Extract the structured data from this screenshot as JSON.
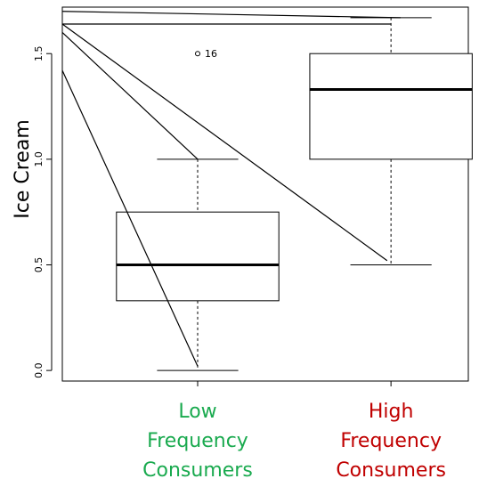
{
  "chart_data": {
    "type": "boxplot",
    "ylabel": "Ice Cream",
    "ylim": [
      -0.05,
      1.72
    ],
    "yticks": [
      "0.0",
      "0.5",
      "1.0",
      "1.5"
    ],
    "ytick_values": [
      0.0,
      0.5,
      1.0,
      1.5
    ],
    "categories": [
      "Low\nFrequency\nConsumers",
      "High\nFrequency\nConsumers"
    ],
    "category_colors": [
      "#1aaa4f",
      "#c00000"
    ],
    "boxes": [
      {
        "category": "Low\nFrequency\nConsumers",
        "whisker_low": 0.0,
        "q1": 0.33,
        "median": 0.5,
        "q3": 0.75,
        "whisker_high": 1.0
      },
      {
        "category": "High\nFrequency\nConsumers",
        "whisker_low": 0.5,
        "q1": 1.0,
        "median": 1.33,
        "q3": 1.5,
        "whisker_high": 1.67
      }
    ],
    "outliers": [
      {
        "box": 0,
        "y": 1.5,
        "label": "16"
      }
    ],
    "overlay_lines": [
      {
        "from": [
          0.3,
          1.7
        ],
        "to": [
          2.05,
          1.67
        ]
      },
      {
        "from": [
          0.3,
          1.64
        ],
        "to": [
          2.0,
          1.64
        ]
      },
      {
        "from": [
          0.3,
          1.64
        ],
        "to": [
          1.98,
          0.52
        ]
      },
      {
        "from": [
          0.3,
          1.6
        ],
        "to": [
          1.0,
          1.0
        ]
      },
      {
        "from": [
          0.3,
          1.42
        ],
        "to": [
          1.0,
          0.02
        ]
      }
    ]
  }
}
